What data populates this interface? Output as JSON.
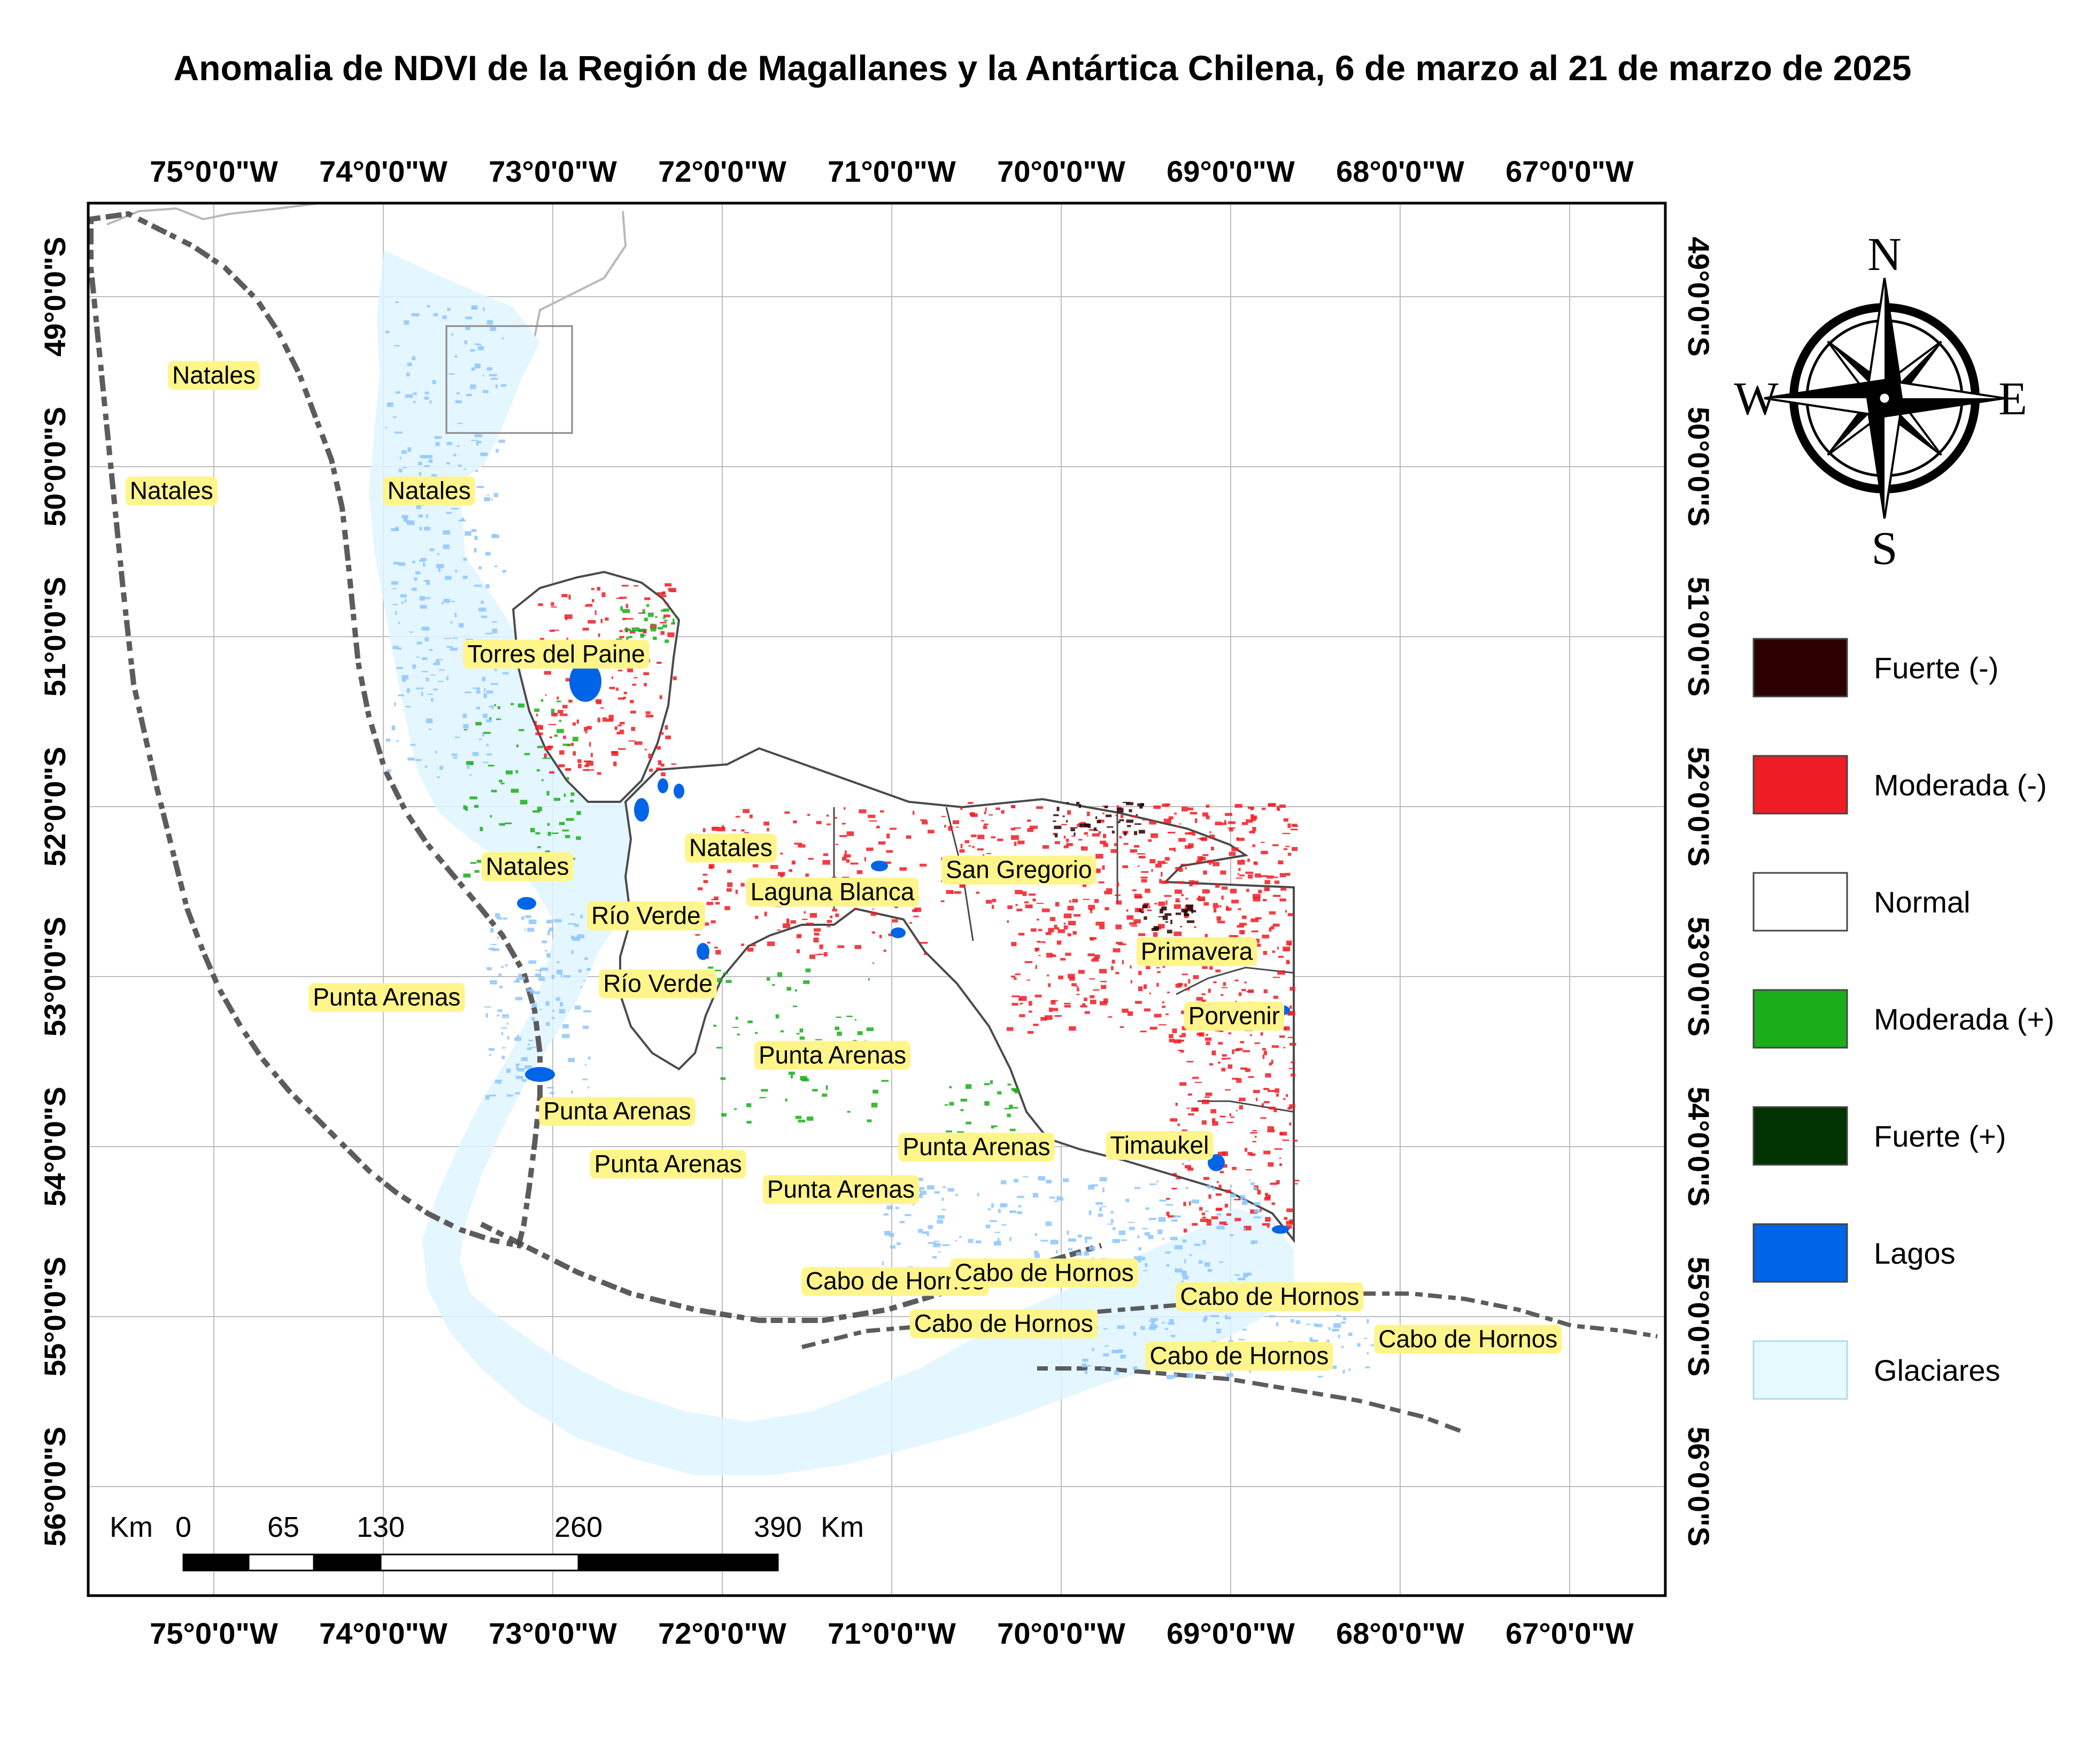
{
  "title": "Anomalia de NDVI de la Región de Magallanes y la Antártica Chilena, 6 de marzo al 21 de marzo de 2025",
  "axes": {
    "lon_labels": [
      "75°0'0\"W",
      "74°0'0\"W",
      "73°0'0\"W",
      "72°0'0\"W",
      "71°0'0\"W",
      "70°0'0\"W",
      "69°0'0\"W",
      "68°0'0\"W",
      "67°0'0\"W"
    ],
    "lat_labels": [
      "49°0'0\"S",
      "50°0'0\"S",
      "51°0'0\"S",
      "52°0'0\"S",
      "53°0'0\"S",
      "54°0'0\"S",
      "55°0'0\"S",
      "56°0'0\"S"
    ]
  },
  "places": [
    {
      "name": "Natales",
      "lon": -75.0,
      "lat": -49.46
    },
    {
      "name": "Natales",
      "lon": -75.25,
      "lat": -50.14
    },
    {
      "name": "Natales",
      "lon": -73.73,
      "lat": -50.14
    },
    {
      "name": "Torres del Paine",
      "lon": -72.98,
      "lat": -51.1
    },
    {
      "name": "Natales",
      "lon": -73.15,
      "lat": -52.35
    },
    {
      "name": "Natales",
      "lon": -71.95,
      "lat": -52.24
    },
    {
      "name": "San Gregorio",
      "lon": -70.25,
      "lat": -52.37
    },
    {
      "name": "Laguna Blanca",
      "lon": -71.35,
      "lat": -52.5
    },
    {
      "name": "Río Verde",
      "lon": -72.45,
      "lat": -52.64
    },
    {
      "name": "Primavera",
      "lon": -69.2,
      "lat": -52.85
    },
    {
      "name": "Punta Arenas",
      "lon": -73.98,
      "lat": -53.12
    },
    {
      "name": "Río Verde",
      "lon": -72.38,
      "lat": -53.04
    },
    {
      "name": "Porvenir",
      "lon": -68.98,
      "lat": -53.23
    },
    {
      "name": "Punta Arenas",
      "lon": -71.35,
      "lat": -53.46
    },
    {
      "name": "Punta Arenas",
      "lon": -72.62,
      "lat": -53.79
    },
    {
      "name": "Punta Arenas",
      "lon": -70.5,
      "lat": -54.0
    },
    {
      "name": "Timaukel",
      "lon": -69.42,
      "lat": -53.99
    },
    {
      "name": "Punta Arenas",
      "lon": -72.32,
      "lat": -54.1
    },
    {
      "name": "Punta Arenas",
      "lon": -71.3,
      "lat": -54.25
    },
    {
      "name": "Cabo de Hornos",
      "lon": -70.98,
      "lat": -54.79
    },
    {
      "name": "Cabo de Hornos",
      "lon": -70.1,
      "lat": -54.74
    },
    {
      "name": "Cabo de Hornos",
      "lon": -68.77,
      "lat": -54.88
    },
    {
      "name": "Cabo de Hornos",
      "lon": -70.34,
      "lat": -55.04
    },
    {
      "name": "Cabo de Hornos",
      "lon": -67.6,
      "lat": -55.13
    },
    {
      "name": "Cabo de Hornos",
      "lon": -68.95,
      "lat": -55.23
    }
  ],
  "legend": [
    {
      "label": "Fuerte (-)",
      "color": "#2d0000"
    },
    {
      "label": "Moderada (-)",
      "color": "#ee1c25"
    },
    {
      "label": "Normal",
      "color": "#ffffff"
    },
    {
      "label": "Moderada (+)",
      "color": "#1aae1a"
    },
    {
      "label": "Fuerte (+)",
      "color": "#003300"
    },
    {
      "label": "Lagos",
      "color": "#0064e6"
    },
    {
      "label": "Glaciares",
      "color": "#e6fbff"
    }
  ],
  "scalebar": {
    "unit": "Km",
    "ticks": [
      "0",
      "65",
      "130",
      "260",
      "390"
    ],
    "unit_right": "Km"
  },
  "compass": {
    "n": "N",
    "s": "S",
    "e": "E",
    "w": "W"
  },
  "colors": {
    "coast": "#4a4a4a",
    "border": "#555555",
    "grid": "#bdbdbd",
    "label_bg": "#fff58a"
  }
}
